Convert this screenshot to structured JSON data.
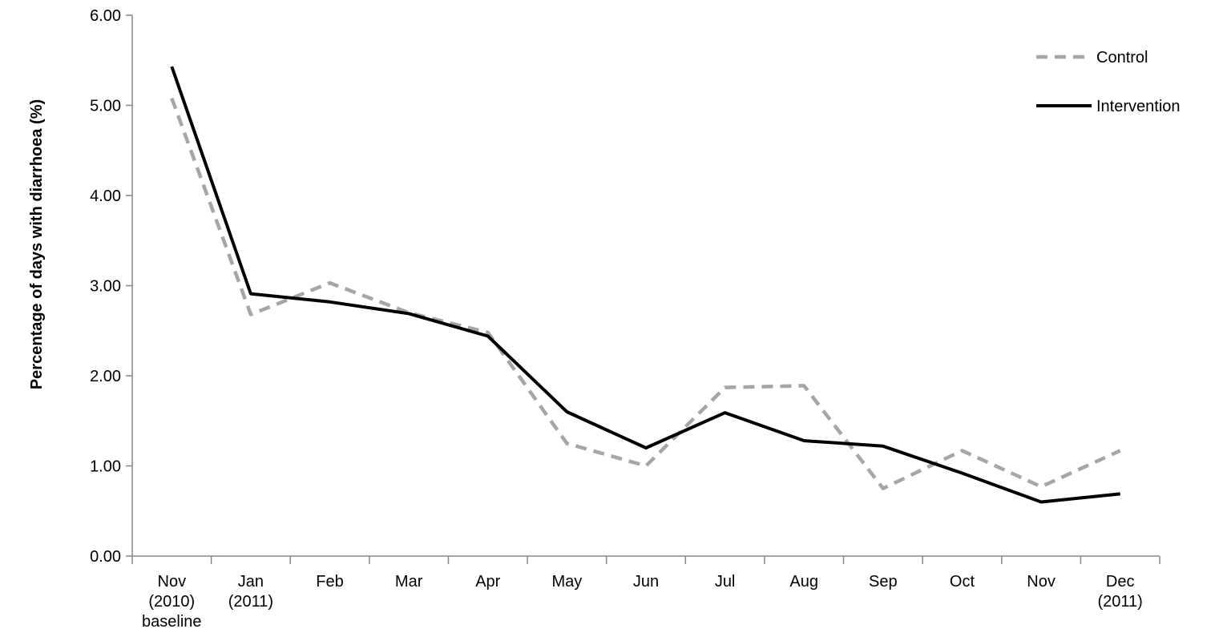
{
  "chart_data": {
    "type": "line",
    "title": "",
    "xlabel": "",
    "ylabel": "Percentage of days with diarrhoea (%)",
    "ylim": [
      0,
      6
    ],
    "yticks": [
      "0.00",
      "1.00",
      "2.00",
      "3.00",
      "4.00",
      "5.00",
      "6.00"
    ],
    "categories": [
      [
        "Nov",
        "(2010)",
        "baseline"
      ],
      [
        "Jan",
        "(2011)"
      ],
      [
        "Feb"
      ],
      [
        "Mar"
      ],
      [
        "Apr"
      ],
      [
        "May"
      ],
      [
        "Jun"
      ],
      [
        "Jul"
      ],
      [
        "Aug"
      ],
      [
        "Sep"
      ],
      [
        "Oct"
      ],
      [
        "Nov"
      ],
      [
        "Dec",
        "(2011)"
      ]
    ],
    "legend_position": "top-right",
    "grid": false,
    "series": [
      {
        "name": "Control",
        "style": "dashed",
        "color": "#A6A6A6",
        "values": [
          5.08,
          2.68,
          3.03,
          2.7,
          2.48,
          1.25,
          1.0,
          1.87,
          1.89,
          0.75,
          1.17,
          0.77,
          1.17
        ]
      },
      {
        "name": "Intervention",
        "style": "solid",
        "color": "#000000",
        "values": [
          5.43,
          2.91,
          2.82,
          2.69,
          2.44,
          1.6,
          1.2,
          1.59,
          1.28,
          1.22,
          0.92,
          0.6,
          0.69
        ]
      }
    ]
  }
}
